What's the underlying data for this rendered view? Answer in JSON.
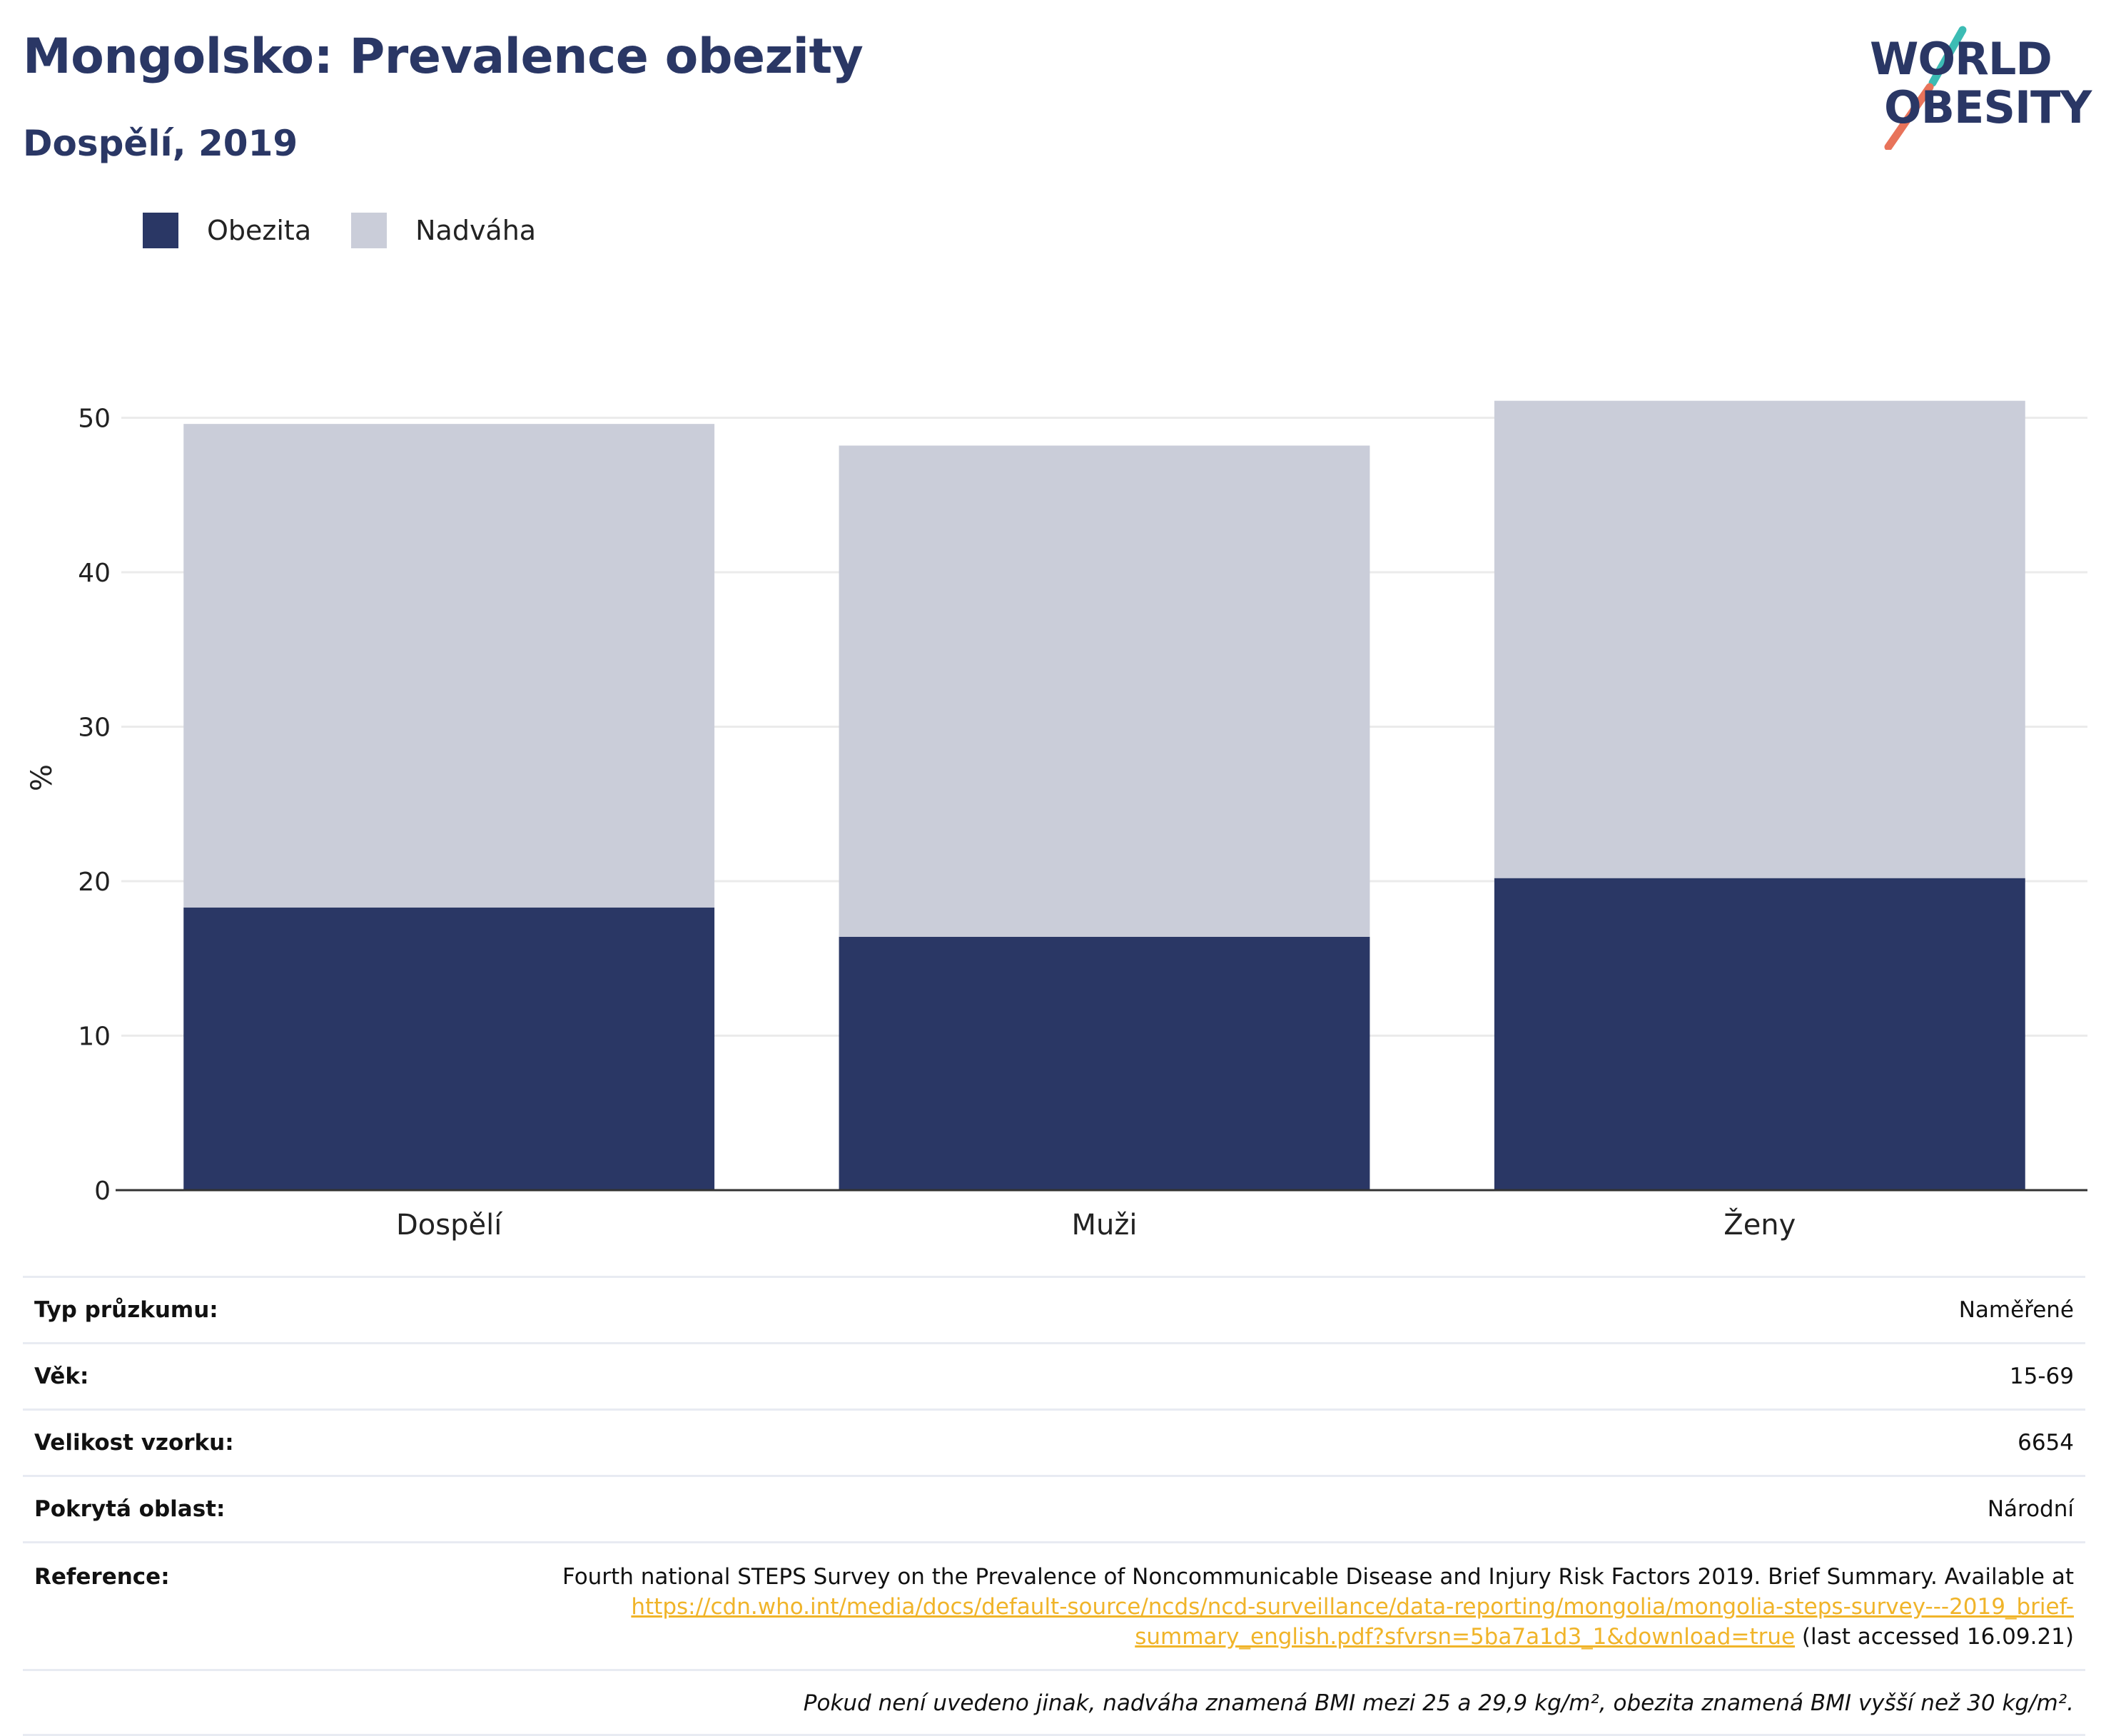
{
  "header": {
    "title": "Mongolsko: Prevalence obezity",
    "subtitle": "Dospělí, 2019"
  },
  "logo": {
    "line1": "WORLD",
    "line2": "OBESITY"
  },
  "colors": {
    "obesity": "#2a3765",
    "overweight": "#cacdd9",
    "accent_teal": "#3cbcb4",
    "accent_coral": "#e8735a",
    "link": "#f0b429"
  },
  "chart_data": {
    "type": "bar",
    "stacked": true,
    "categories": [
      "Dospělí",
      "Muži",
      "Ženy"
    ],
    "series": [
      {
        "name": "Obezita",
        "values": [
          18.3,
          16.4,
          20.2
        ]
      },
      {
        "name": "Nadváha",
        "values": [
          31.3,
          31.8,
          30.9
        ]
      }
    ],
    "ylabel": "%",
    "ylim": [
      0,
      55
    ],
    "yticks": [
      0,
      10,
      20,
      30,
      40,
      50
    ],
    "grid": true,
    "legend": "top-left"
  },
  "info": {
    "survey_type": {
      "label": "Typ průzkumu:",
      "value": "Naměřené"
    },
    "age": {
      "label": "Věk:",
      "value": "15-69"
    },
    "sample_size": {
      "label": "Velikost vzorku:",
      "value": "6654"
    },
    "coverage": {
      "label": "Pokrytá oblast:",
      "value": "Národní"
    },
    "reference": {
      "label": "Reference:",
      "text": "Fourth national STEPS Survey on the Prevalence of Noncommunicable Disease and Injury Risk Factors 2019. Brief Summary. Available at ",
      "link": "https://cdn.who.int/media/docs/default-source/ncds/ncd-surveillance/data-reporting/mongolia/mongolia-steps-survey---2019_brief-summary_english.pdf?sfvrsn=5ba7a1d3_1&download=true",
      "suffix": " (last accessed 16.09.21)"
    },
    "note": "Pokud není uvedeno jinak, nadváha znamená BMI mezi 25 a 29,9 kg/m², obezita znamená BMI vyšší než 30 kg/m²."
  }
}
